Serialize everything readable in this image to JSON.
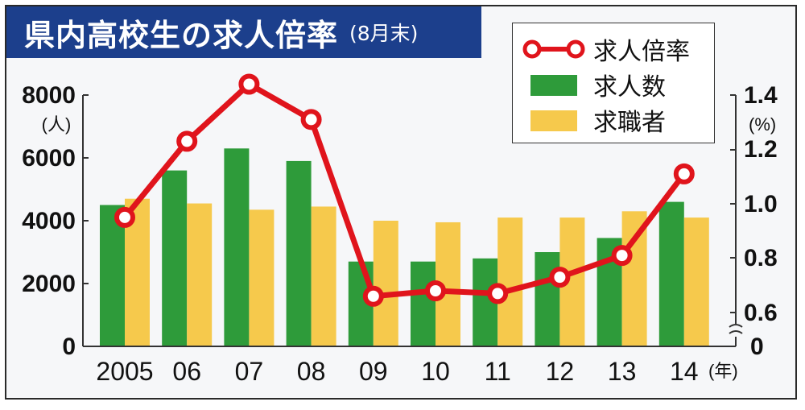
{
  "title": {
    "main": "県内高校生の求人倍率",
    "sub": "(8月末)"
  },
  "legend": {
    "ratio": "求人倍率",
    "openings": "求人数",
    "seekers": "求職者"
  },
  "colors": {
    "openings": "#2e9b3a",
    "seekers": "#f6c94c",
    "ratio": "#e0141c",
    "title_bg": "#1c3f8c"
  },
  "left_axis": {
    "ticks": [
      "8000",
      "6000",
      "4000",
      "2000",
      "0"
    ],
    "unit": "(人)"
  },
  "right_axis": {
    "ticks": [
      "1.4",
      "1.2",
      "1.0",
      "0.8",
      "0.6",
      "0"
    ],
    "unit": "(%)"
  },
  "x_unit": "(年)",
  "chart_data": {
    "type": "bar",
    "categories": [
      "2005",
      "06",
      "07",
      "08",
      "09",
      "10",
      "11",
      "12",
      "13",
      "14"
    ],
    "series": [
      {
        "name": "求人数",
        "type": "bar",
        "axis": "left",
        "values": [
          4500,
          5600,
          6300,
          5900,
          2700,
          2700,
          2800,
          3000,
          3450,
          4600
        ]
      },
      {
        "name": "求職者",
        "type": "bar",
        "axis": "left",
        "values": [
          4700,
          4550,
          4350,
          4450,
          4000,
          3950,
          4100,
          4100,
          4300,
          4100
        ]
      },
      {
        "name": "求人倍率",
        "type": "line",
        "axis": "right",
        "values": [
          0.95,
          1.23,
          1.44,
          1.31,
          0.66,
          0.68,
          0.67,
          0.73,
          0.81,
          1.11
        ]
      }
    ],
    "ylim_left": [
      0,
      8000
    ],
    "ylim_right_break": [
      0.6,
      1.4
    ],
    "grid": false,
    "legend_position": "top-right"
  }
}
